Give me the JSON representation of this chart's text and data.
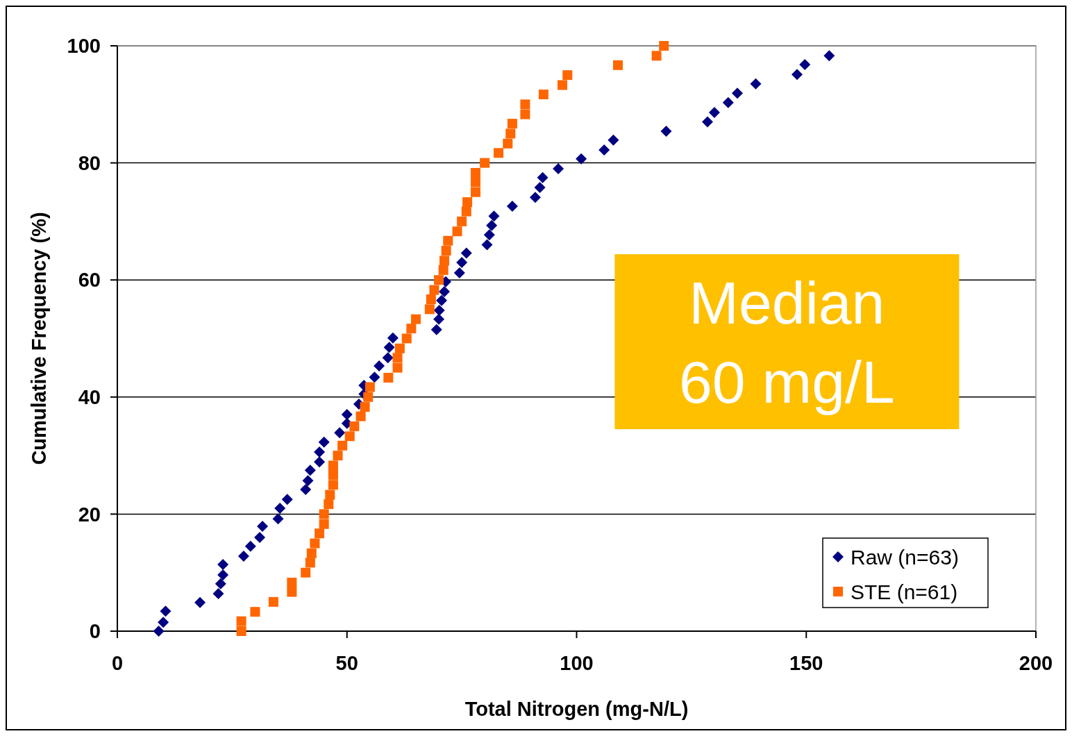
{
  "chart_data": {
    "type": "scatter",
    "xlabel": "Total Nitrogen (mg-N/L)",
    "ylabel": "Cumulative Frequency (%)",
    "xlim": [
      0,
      200
    ],
    "xticks": [
      0,
      50,
      100,
      150,
      200
    ],
    "ylim": [
      0,
      100
    ],
    "yticks": [
      0,
      20,
      40,
      60,
      80,
      100
    ],
    "grid": "y",
    "legend": "bottom right",
    "annotations": [
      "Median 60 mg/L"
    ],
    "series": [
      {
        "name": "Raw (n=63)",
        "color": "#000080",
        "marker": "diamond",
        "x": [
          9,
          10,
          10.5,
          18,
          22,
          22.5,
          23,
          23,
          27.5,
          29,
          31,
          31.6,
          35,
          35.4,
          37,
          41,
          41.5,
          42,
          44,
          44,
          45,
          48.4,
          50,
          50,
          52.6,
          53.7,
          53.7,
          56,
          57,
          58.9,
          59.2,
          60,
          69.5,
          70,
          70.1,
          70.6,
          71.2,
          71.5,
          74.5,
          75,
          76,
          80.5,
          81,
          81.5,
          82,
          86,
          91,
          92,
          92.6,
          96,
          101,
          106,
          108,
          119.5,
          128.5,
          130,
          133,
          135,
          139,
          148,
          149.7,
          155
        ],
        "values": [
          0,
          1.5,
          3.4,
          4.9,
          6.4,
          8.1,
          9.6,
          11.4,
          12.8,
          14.5,
          16,
          17.9,
          19.2,
          21,
          22.5,
          24.2,
          25.7,
          27.5,
          28.9,
          30.6,
          32.3,
          33.9,
          35.5,
          37,
          38.8,
          40.5,
          42,
          43.4,
          45.3,
          46.7,
          48.5,
          50.1,
          51.5,
          53.3,
          54.8,
          56.5,
          58,
          59.7,
          61.2,
          63,
          64.6,
          66,
          67.7,
          69.3,
          70.9,
          72.6,
          74.1,
          75.8,
          77.5,
          79,
          80.7,
          82.2,
          83.9,
          85.4,
          87,
          88.6,
          90.3,
          91.9,
          93.5,
          95.1,
          96.8,
          98.3
        ]
      },
      {
        "name": "STE (n=61)",
        "color": "#ff6600",
        "marker": "square",
        "x": [
          27,
          27,
          30,
          34,
          38,
          38,
          41,
          42,
          42.3,
          43,
          44,
          45,
          45,
          46,
          46.3,
          47,
          47,
          47,
          48,
          49,
          50.6,
          51.6,
          53,
          53.9,
          54.6,
          55,
          59,
          61,
          61,
          61.5,
          63,
          64,
          65,
          68,
          68.3,
          69,
          70,
          71,
          71.2,
          71.6,
          72,
          74,
          75,
          76,
          76.2,
          78,
          78,
          78,
          80,
          83,
          85,
          85.6,
          86,
          88.8,
          88.8,
          92.8,
          96.9,
          98,
          109,
          117.4,
          119
        ],
        "values": [
          0,
          1.7,
          3.3,
          5,
          6.7,
          8.3,
          10,
          11.7,
          13.3,
          15,
          16.7,
          18.3,
          20,
          21.7,
          23.3,
          25,
          26.7,
          28.3,
          30,
          31.7,
          33.3,
          35,
          36.7,
          38.3,
          40,
          41.7,
          43.3,
          45,
          46.7,
          48.3,
          50,
          51.7,
          53.3,
          55,
          56.7,
          58.3,
          60,
          61.7,
          63.3,
          65,
          66.7,
          68.3,
          70,
          71.7,
          73.3,
          75,
          76.7,
          78.3,
          80,
          81.7,
          83.3,
          85,
          86.7,
          88.3,
          90,
          91.7,
          93.3,
          95,
          96.7,
          98.3,
          100
        ]
      }
    ]
  }
}
